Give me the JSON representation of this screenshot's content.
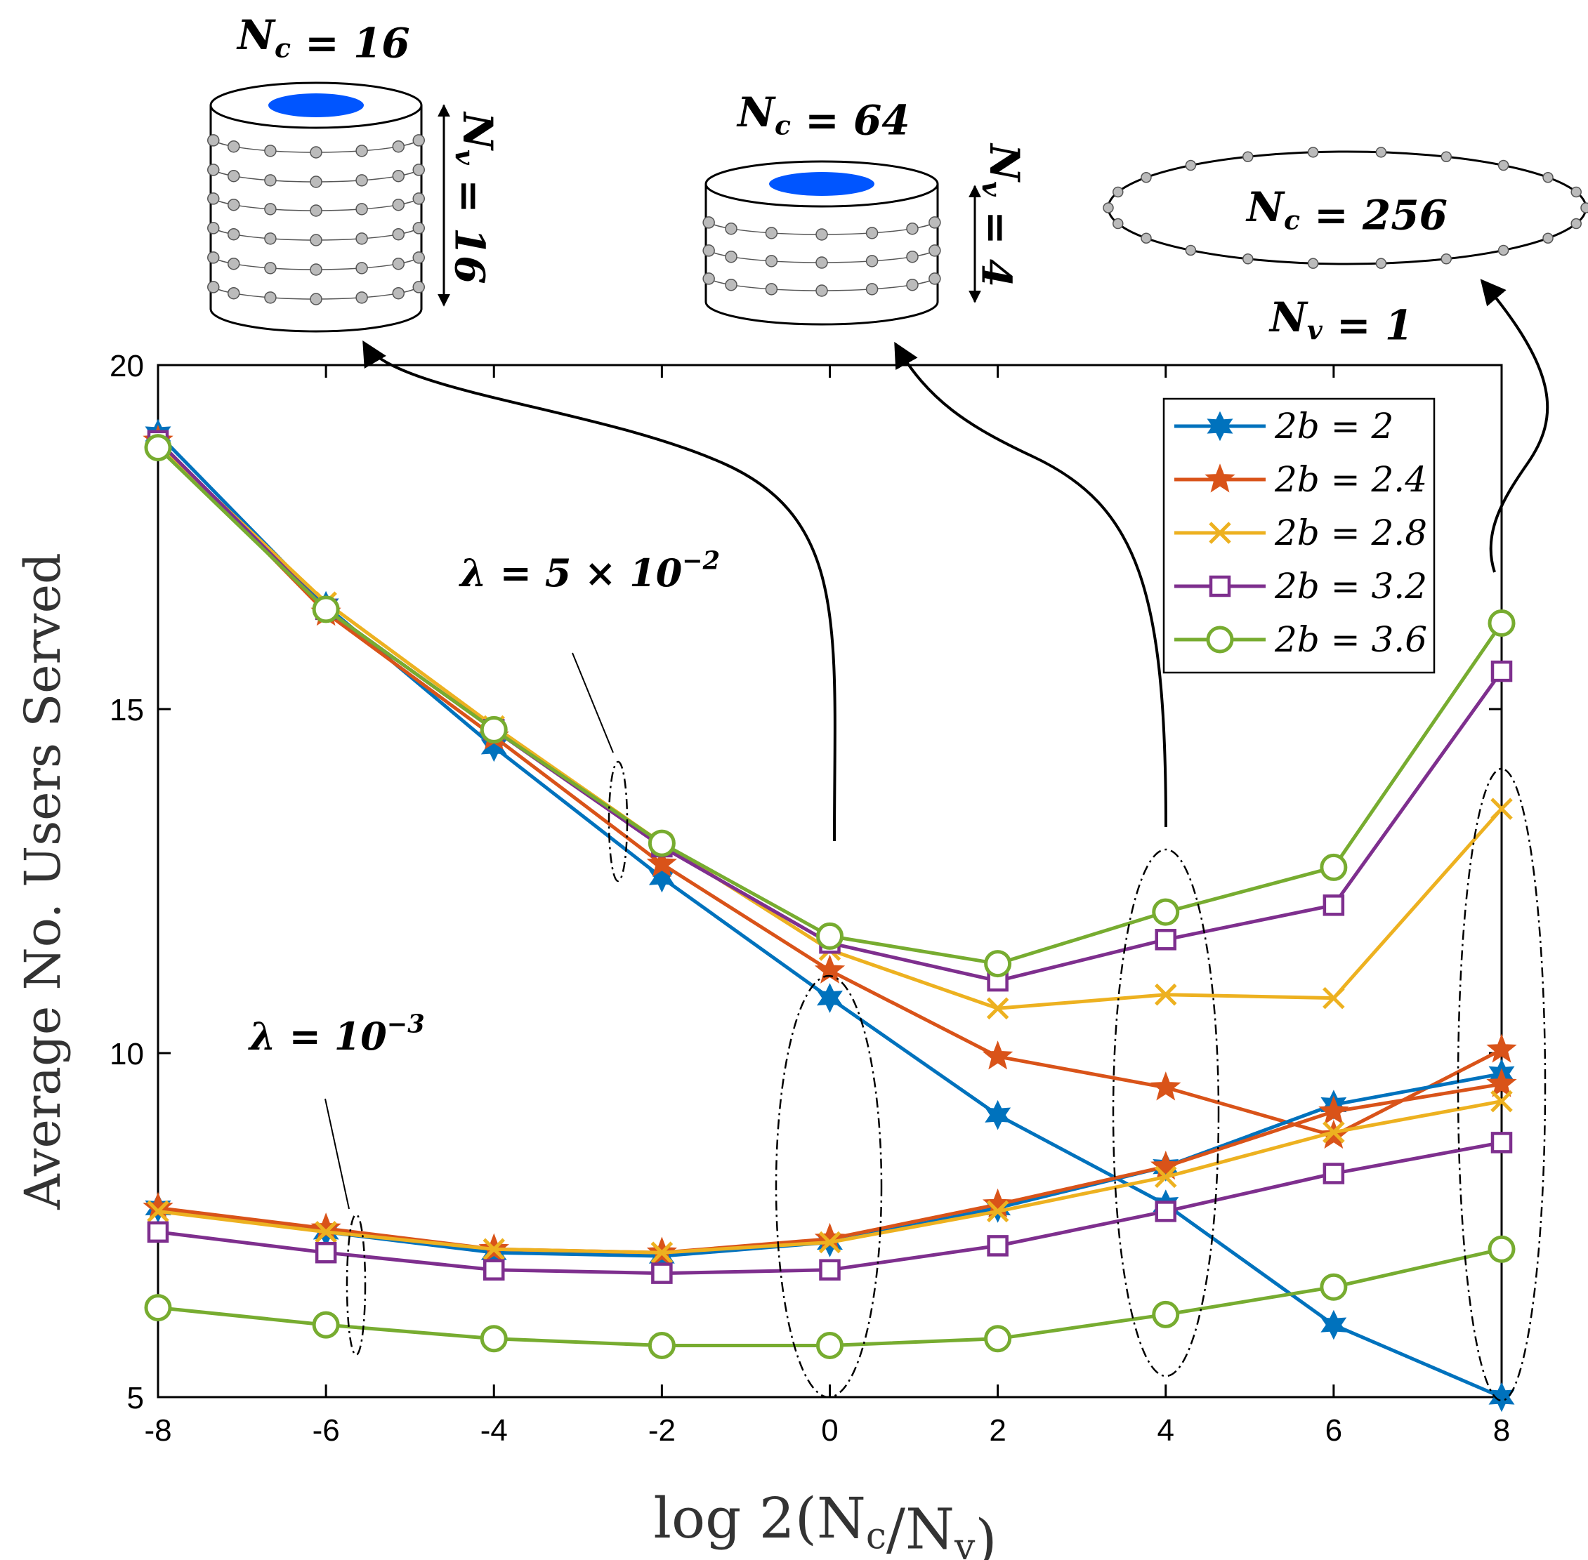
{
  "chart_data": {
    "type": "line",
    "xlabel": "log 2(N_c/N_v)",
    "ylabel": "Average No. Users Served",
    "x": [
      -8,
      -6,
      -4,
      -2,
      0,
      2,
      4,
      6,
      8
    ],
    "xticks": [
      "-8",
      "-6",
      "-4",
      "-2",
      "0",
      "2",
      "4",
      "6",
      "8"
    ],
    "yticks": [
      "5",
      "10",
      "15",
      "20"
    ],
    "xlim": [
      -8,
      8
    ],
    "ylim": [
      5,
      20
    ],
    "legend_position": "top-right",
    "groups": [
      {
        "name": "lambda = 5e-2",
        "label": "λ = 5 × 10−2",
        "series": [
          {
            "name": "2b = 2",
            "legend": "2b = 2",
            "color": "#0072BD",
            "marker": "hexagram",
            "values": [
              19.0,
              16.5,
              14.45,
              12.55,
              10.8,
              9.1,
              7.8,
              6.05,
              5.0
            ]
          },
          {
            "name": "2b = 2.4",
            "legend": "2b = 2.4",
            "color": "#D95319",
            "marker": "pentagram",
            "values": [
              18.9,
              16.4,
              14.6,
              12.75,
              11.2,
              9.95,
              9.5,
              8.8,
              10.05
            ]
          },
          {
            "name": "2b = 2.8",
            "legend": "2b = 2.8",
            "color": "#EDB120",
            "marker": "x",
            "values": [
              18.85,
              16.55,
              14.75,
              13.05,
              11.5,
              10.65,
              10.85,
              10.8,
              13.55
            ]
          },
          {
            "name": "2b = 3.2",
            "legend": "2b = 3.2",
            "color": "#7E2F8E",
            "marker": "square",
            "values": [
              18.9,
              16.45,
              14.7,
              13.0,
              11.6,
              11.05,
              11.65,
              12.15,
              15.55
            ]
          },
          {
            "name": "2b = 3.6",
            "legend": "2b = 3.6",
            "color": "#77AC30",
            "marker": "circle",
            "values": [
              18.8,
              16.45,
              14.7,
              13.05,
              11.7,
              11.3,
              12.05,
              12.7,
              16.25
            ]
          }
        ]
      },
      {
        "name": "lambda = 1e-3",
        "label": "λ = 10−3",
        "series": [
          {
            "name": "2b = 2",
            "color": "#0072BD",
            "marker": "hexagram",
            "values": [
              7.75,
              7.4,
              7.1,
              7.05,
              7.25,
              7.75,
              8.35,
              9.25,
              9.7
            ]
          },
          {
            "name": "2b = 2.4",
            "color": "#D95319",
            "marker": "pentagram",
            "values": [
              7.75,
              7.45,
              7.15,
              7.1,
              7.3,
              7.8,
              8.35,
              9.15,
              9.55
            ]
          },
          {
            "name": "2b = 2.8",
            "color": "#EDB120",
            "marker": "x",
            "values": [
              7.7,
              7.4,
              7.15,
              7.1,
              7.25,
              7.7,
              8.2,
              8.85,
              9.3
            ]
          },
          {
            "name": "2b = 3.2",
            "color": "#7E2F8E",
            "marker": "square",
            "values": [
              7.4,
              7.1,
              6.85,
              6.8,
              6.85,
              7.2,
              7.7,
              8.25,
              8.7
            ]
          },
          {
            "name": "2b = 3.6",
            "color": "#77AC30",
            "marker": "circle",
            "values": [
              6.3,
              6.05,
              5.85,
              5.75,
              5.75,
              5.85,
              6.2,
              6.6,
              7.15
            ]
          }
        ]
      }
    ],
    "insets": {
      "inset1": {
        "nc": "N_c = 16",
        "nv": "N_v = 16",
        "points_x": 0
      },
      "inset2": {
        "nc": "N_c = 64",
        "nv": "N_v = 4",
        "points_x": 4
      },
      "inset3": {
        "nc": "N_c = 256",
        "nv": "N_v = 1",
        "points_x": 8
      }
    }
  }
}
